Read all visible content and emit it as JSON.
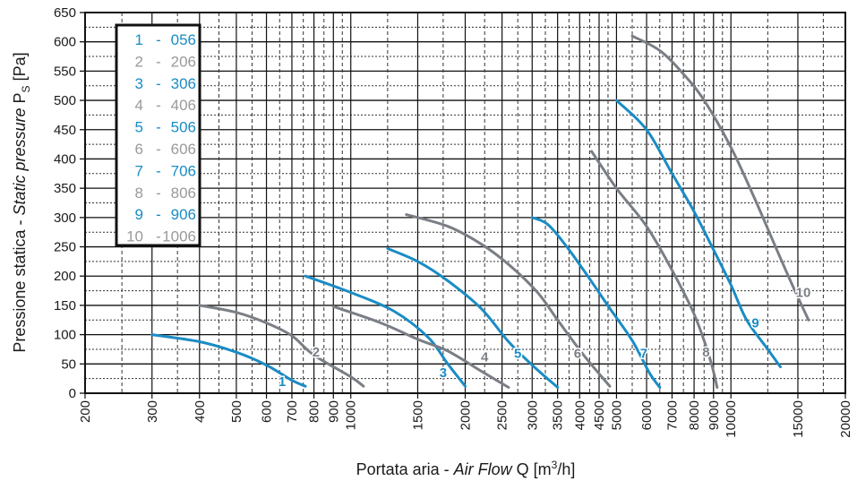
{
  "chart_data": {
    "type": "line",
    "x_scale": "log",
    "xlim": [
      200,
      20000
    ],
    "ylim": [
      0,
      650
    ],
    "grid": true,
    "legend_placement": "top-left",
    "xlabel": {
      "prefix": "Portata aria - ",
      "italic": "Air Flow",
      "suffix": " Q [m",
      "sup": "3",
      "tail": "/h]"
    },
    "ylabel": {
      "prefix": "Pressione statica - ",
      "italic": "Static pressure",
      "suffix": " P",
      "sub": "S",
      "tail": " [Pa]"
    },
    "x_ticks": [
      200,
      300,
      400,
      500,
      600,
      700,
      800,
      900,
      1000,
      1500,
      2000,
      2500,
      3000,
      3500,
      4000,
      4500,
      5000,
      6000,
      7000,
      8000,
      9000,
      10000,
      15000,
      20000
    ],
    "x_tick_labels": [
      "200",
      "300",
      "400",
      "500",
      "600",
      "700",
      "800",
      "900",
      "1000",
      "1500",
      "2000",
      "2500",
      "3000",
      "3500",
      "4000",
      "4500",
      "5000",
      "6000",
      "7000",
      "8000",
      "9000",
      "10000",
      "15000",
      "20000"
    ],
    "y_ticks": [
      0,
      50,
      100,
      150,
      200,
      250,
      300,
      350,
      400,
      450,
      500,
      550,
      600,
      650
    ],
    "y_tick_labels": [
      "0",
      "50",
      "100",
      "150",
      "200",
      "250",
      "300",
      "350",
      "400",
      "450",
      "500",
      "550",
      "600",
      "650"
    ],
    "colors": {
      "blue": "#1a8cc4",
      "gray": "#7a7e85",
      "legend_gray": "#9a9a9a"
    },
    "legend": [
      {
        "num": "1",
        "model": "056",
        "color": "blue"
      },
      {
        "num": "2",
        "model": "206",
        "color": "gray"
      },
      {
        "num": "3",
        "model": "306",
        "color": "blue"
      },
      {
        "num": "4",
        "model": "406",
        "color": "gray"
      },
      {
        "num": "5",
        "model": "506",
        "color": "blue"
      },
      {
        "num": "6",
        "model": "606",
        "color": "gray"
      },
      {
        "num": "7",
        "model": "706",
        "color": "blue"
      },
      {
        "num": "8",
        "model": "806",
        "color": "gray"
      },
      {
        "num": "9",
        "model": "906",
        "color": "blue"
      },
      {
        "num": "10",
        "model": "1006",
        "color": "gray"
      }
    ],
    "series": [
      {
        "label": "1",
        "color": "blue",
        "points": [
          [
            300,
            100
          ],
          [
            400,
            88
          ],
          [
            500,
            70
          ],
          [
            600,
            48
          ],
          [
            700,
            22
          ],
          [
            760,
            12
          ]
        ]
      },
      {
        "label": "2",
        "color": "gray",
        "points": [
          [
            400,
            150
          ],
          [
            500,
            138
          ],
          [
            600,
            120
          ],
          [
            700,
            98
          ],
          [
            800,
            65
          ],
          [
            1000,
            28
          ],
          [
            1080,
            12
          ]
        ]
      },
      {
        "label": "3",
        "color": "blue",
        "points": [
          [
            760,
            200
          ],
          [
            1000,
            172
          ],
          [
            1300,
            140
          ],
          [
            1600,
            95
          ],
          [
            1800,
            50
          ],
          [
            2000,
            12
          ]
        ]
      },
      {
        "label": "4",
        "color": "gray",
        "points": [
          [
            900,
            148
          ],
          [
            1200,
            120
          ],
          [
            1500,
            92
          ],
          [
            1800,
            72
          ],
          [
            2200,
            38
          ],
          [
            2600,
            10
          ]
        ]
      },
      {
        "label": "5",
        "color": "blue",
        "points": [
          [
            1250,
            247
          ],
          [
            1500,
            225
          ],
          [
            1800,
            192
          ],
          [
            2200,
            145
          ],
          [
            2600,
            88
          ],
          [
            3000,
            48
          ],
          [
            3500,
            10
          ]
        ]
      },
      {
        "label": "6",
        "color": "gray",
        "points": [
          [
            1400,
            305
          ],
          [
            1800,
            285
          ],
          [
            2200,
            255
          ],
          [
            2600,
            220
          ],
          [
            3100,
            172
          ],
          [
            3500,
            125
          ],
          [
            4100,
            65
          ],
          [
            4800,
            12
          ]
        ]
      },
      {
        "label": "7",
        "color": "blue",
        "points": [
          [
            3000,
            300
          ],
          [
            3300,
            288
          ],
          [
            3700,
            250
          ],
          [
            4200,
            200
          ],
          [
            4800,
            145
          ],
          [
            5500,
            90
          ],
          [
            6100,
            35
          ],
          [
            6500,
            10
          ]
        ]
      },
      {
        "label": "8",
        "color": "gray",
        "points": [
          [
            4300,
            413
          ],
          [
            5000,
            350
          ],
          [
            6000,
            285
          ],
          [
            7000,
            210
          ],
          [
            8000,
            135
          ],
          [
            8800,
            60
          ],
          [
            9200,
            10
          ]
        ]
      },
      {
        "label": "9",
        "color": "blue",
        "points": [
          [
            5000,
            500
          ],
          [
            6000,
            450
          ],
          [
            7000,
            375
          ],
          [
            8000,
            310
          ],
          [
            9000,
            245
          ],
          [
            10000,
            185
          ],
          [
            11000,
            125
          ],
          [
            12500,
            75
          ],
          [
            13500,
            45
          ]
        ]
      },
      {
        "label": "10",
        "color": "gray",
        "points": [
          [
            5500,
            610
          ],
          [
            6500,
            585
          ],
          [
            7500,
            545
          ],
          [
            8500,
            500
          ],
          [
            10000,
            420
          ],
          [
            11500,
            335
          ],
          [
            13000,
            255
          ],
          [
            14500,
            185
          ],
          [
            16000,
            125
          ]
        ]
      }
    ],
    "curve_labels": [
      {
        "text": "1",
        "x": 660,
        "y": 20,
        "color": "blue"
      },
      {
        "text": "2",
        "x": 810,
        "y": 70,
        "color": "gray"
      },
      {
        "text": "3",
        "x": 1750,
        "y": 35,
        "color": "blue"
      },
      {
        "text": "4",
        "x": 2250,
        "y": 62,
        "color": "gray"
      },
      {
        "text": "5",
        "x": 2750,
        "y": 68,
        "color": "blue"
      },
      {
        "text": "6",
        "x": 3950,
        "y": 68,
        "color": "gray"
      },
      {
        "text": "7",
        "x": 5900,
        "y": 68,
        "color": "blue"
      },
      {
        "text": "8",
        "x": 8600,
        "y": 70,
        "color": "gray"
      },
      {
        "text": "9",
        "x": 11600,
        "y": 120,
        "color": "blue"
      },
      {
        "text": "10",
        "x": 15500,
        "y": 172,
        "color": "gray"
      }
    ]
  }
}
